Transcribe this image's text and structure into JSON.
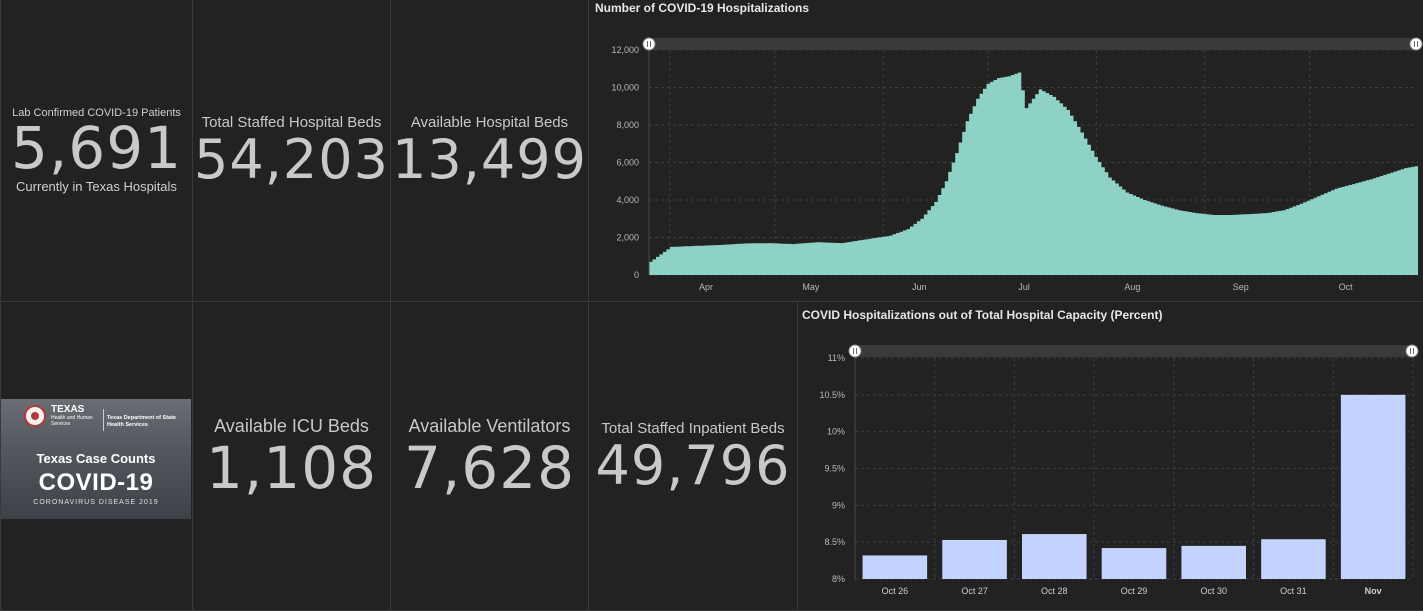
{
  "indicators": {
    "lab_confirmed": {
      "title": "Lab Confirmed COVID-19 Patients",
      "value": "5,691",
      "subtitle": "Currently in Texas Hospitals"
    },
    "total_staffed_beds": {
      "title": "Total Staffed Hospital Beds",
      "value": "54,203"
    },
    "available_beds": {
      "title": "Available Hospital Beds",
      "value": "13,499"
    },
    "available_icu": {
      "title": "Available ICU Beds",
      "value": "1,108"
    },
    "available_ventilators": {
      "title": "Available Ventilators",
      "value": "7,628"
    },
    "total_inpatient_beds": {
      "title": "Total Staffed Inpatient Beds",
      "value": "49,796"
    }
  },
  "logo": {
    "agency": "TEXAS",
    "agency_sub": "Health and Human Services",
    "dept": "Texas Department of State Health Services",
    "line1": "Texas Case Counts",
    "line2": "COVID-19",
    "line3": "CORONAVIRUS DISEASE 2019"
  },
  "colors": {
    "background": "#222222",
    "area_fill": "#8ed2c6",
    "bar_fill": "#c3d3fd",
    "grid": "#3d3d3d",
    "slider_track": "#3a3a3a"
  },
  "chart_data": [
    {
      "type": "area",
      "title": "Number of COVID-19 Hospitalizations",
      "xlabel": "",
      "ylabel": "",
      "x_tick_labels": [
        "Apr",
        "May",
        "Jun",
        "Jul",
        "Aug",
        "Sep",
        "Oct"
      ],
      "ylim": [
        0,
        12000
      ],
      "y_ticks": [
        0,
        2000,
        4000,
        6000,
        8000,
        10000,
        12000
      ],
      "y_tick_labels": [
        "0",
        "2,000",
        "4,000",
        "6,000",
        "8,000",
        "10,000",
        "12,000"
      ],
      "grid": true,
      "x_start": "2020-03-26",
      "x": [
        "2020-03-26",
        "2020-04-01",
        "2020-04-08",
        "2020-04-15",
        "2020-04-22",
        "2020-04-29",
        "2020-05-06",
        "2020-05-13",
        "2020-05-20",
        "2020-05-27",
        "2020-06-03",
        "2020-06-08",
        "2020-06-12",
        "2020-06-16",
        "2020-06-19",
        "2020-06-22",
        "2020-06-25",
        "2020-06-28",
        "2020-07-01",
        "2020-07-04",
        "2020-07-07",
        "2020-07-10",
        "2020-07-12",
        "2020-07-16",
        "2020-07-20",
        "2020-07-24",
        "2020-07-28",
        "2020-08-01",
        "2020-08-05",
        "2020-08-10",
        "2020-08-15",
        "2020-08-20",
        "2020-08-25",
        "2020-08-30",
        "2020-09-04",
        "2020-09-09",
        "2020-09-14",
        "2020-09-19",
        "2020-09-24",
        "2020-09-29",
        "2020-10-04",
        "2020-10-09",
        "2020-10-14",
        "2020-10-19",
        "2020-10-24",
        "2020-10-29",
        "2020-11-01"
      ],
      "values": [
        700,
        1500,
        1550,
        1600,
        1680,
        1700,
        1650,
        1750,
        1700,
        1900,
        2100,
        2450,
        3000,
        3900,
        5000,
        6500,
        8200,
        9400,
        10200,
        10500,
        10600,
        10800,
        8900,
        9900,
        9500,
        8800,
        7600,
        6300,
        5200,
        4400,
        4000,
        3700,
        3450,
        3300,
        3200,
        3200,
        3250,
        3300,
        3450,
        3800,
        4200,
        4600,
        4850,
        5100,
        5400,
        5700,
        5800
      ]
    },
    {
      "type": "bar",
      "title": "COVID Hospitalizations out of Total Hospital Capacity (Percent)",
      "xlabel": "",
      "ylabel": "",
      "categories": [
        "Oct 26",
        "Oct 27",
        "Oct 28",
        "Oct 29",
        "Oct 30",
        "Oct 31",
        "Nov"
      ],
      "values": [
        8.32,
        8.53,
        8.61,
        8.42,
        8.45,
        8.54,
        10.5
      ],
      "ylim": [
        8,
        11
      ],
      "y_ticks": [
        8,
        8.5,
        9,
        9.5,
        10,
        10.5,
        11
      ],
      "y_tick_labels": [
        "8%",
        "8.5%",
        "9%",
        "9.5%",
        "10%",
        "10.5%",
        "11%"
      ],
      "grid": true
    }
  ]
}
